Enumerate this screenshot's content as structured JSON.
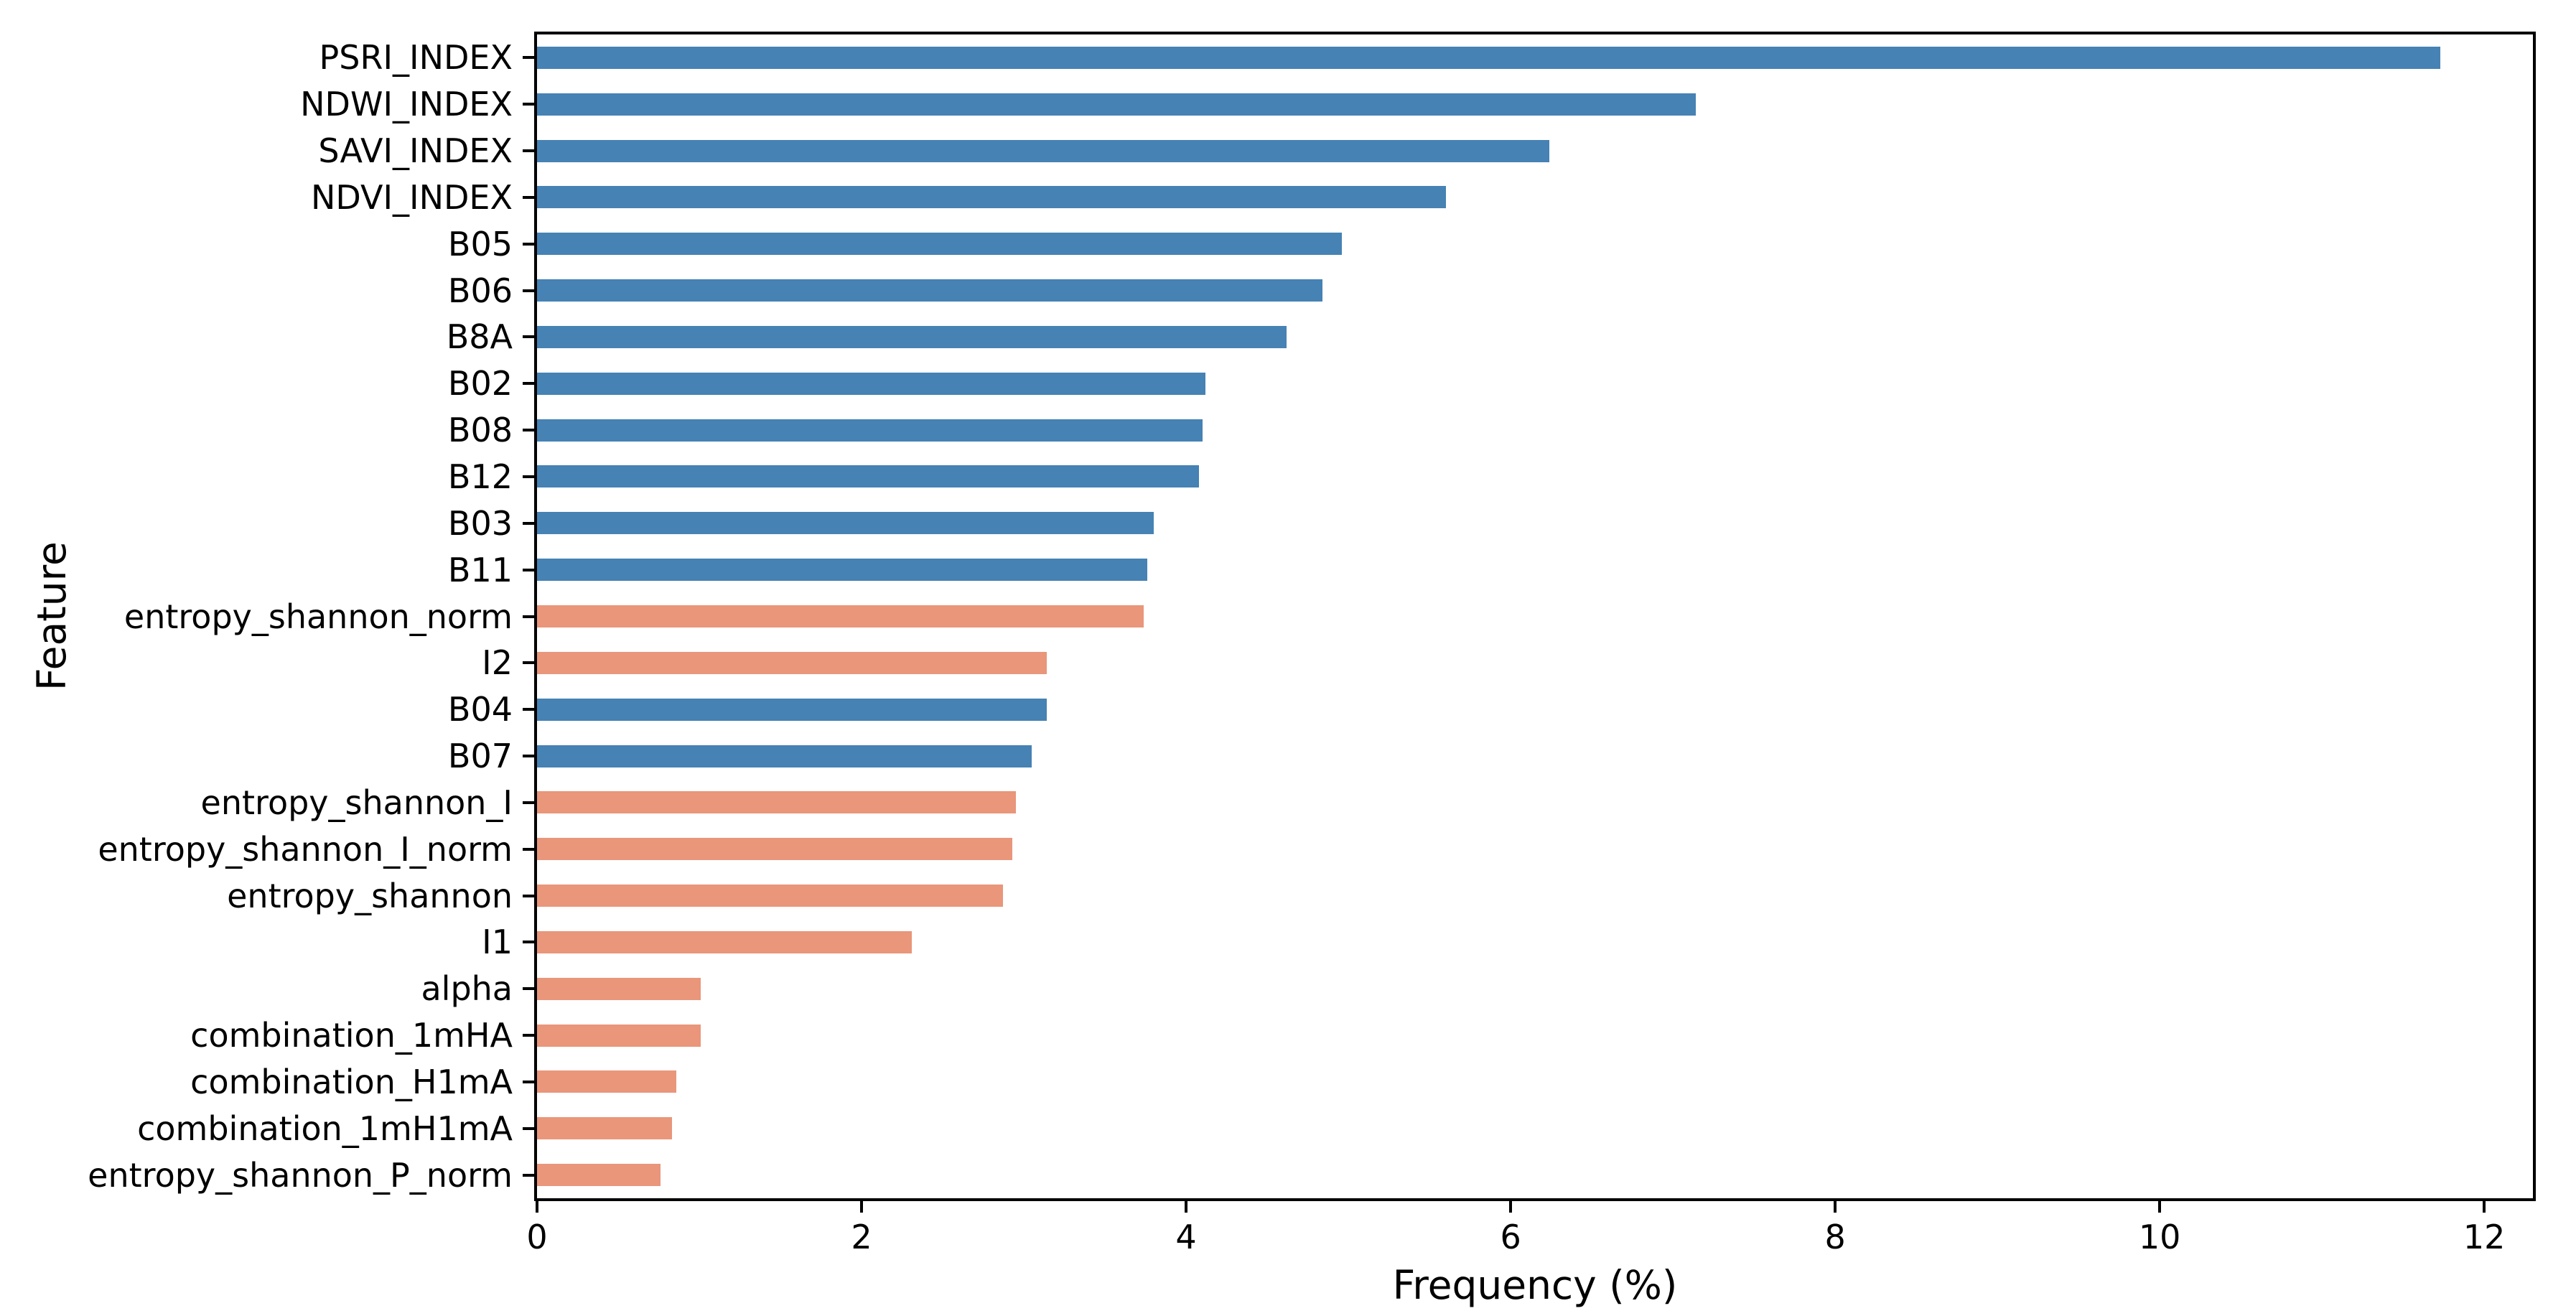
{
  "figure": {
    "background": "#ffffff",
    "spine_color": "#000000"
  },
  "chart_data": {
    "type": "bar",
    "orientation": "horizontal",
    "title": "",
    "xlabel": "Frequency (%)",
    "ylabel": "Feature",
    "xlim": [
      0,
      12.3
    ],
    "xticks": [
      0,
      2,
      4,
      6,
      8,
      10,
      12
    ],
    "grid": false,
    "legend": "none",
    "palette": {
      "blue": "#4682B4",
      "salmon": "#E9967A"
    },
    "categories": [
      "PSRI_INDEX",
      "NDWI_INDEX",
      "SAVI_INDEX",
      "NDVI_INDEX",
      "B05",
      "B06",
      "B8A",
      "B02",
      "B08",
      "B12",
      "B03",
      "B11",
      "entropy_shannon_norm",
      "I2",
      "B04",
      "B07",
      "entropy_shannon_I",
      "entropy_shannon_I_norm",
      "entropy_shannon",
      "I1",
      "alpha",
      "combination_1mHA",
      "combination_H1mA",
      "combination_1mH1mA",
      "entropy_shannon_P_norm"
    ],
    "values": [
      11.73,
      7.14,
      6.24,
      5.6,
      4.96,
      4.84,
      4.62,
      4.12,
      4.1,
      4.08,
      3.8,
      3.76,
      3.74,
      3.14,
      3.14,
      3.05,
      2.95,
      2.93,
      2.87,
      2.31,
      1.01,
      1.01,
      0.86,
      0.83,
      0.76
    ],
    "bar_colors": [
      "blue",
      "blue",
      "blue",
      "blue",
      "blue",
      "blue",
      "blue",
      "blue",
      "blue",
      "blue",
      "blue",
      "blue",
      "salmon",
      "salmon",
      "blue",
      "blue",
      "salmon",
      "salmon",
      "salmon",
      "salmon",
      "salmon",
      "salmon",
      "salmon",
      "salmon",
      "salmon"
    ]
  }
}
